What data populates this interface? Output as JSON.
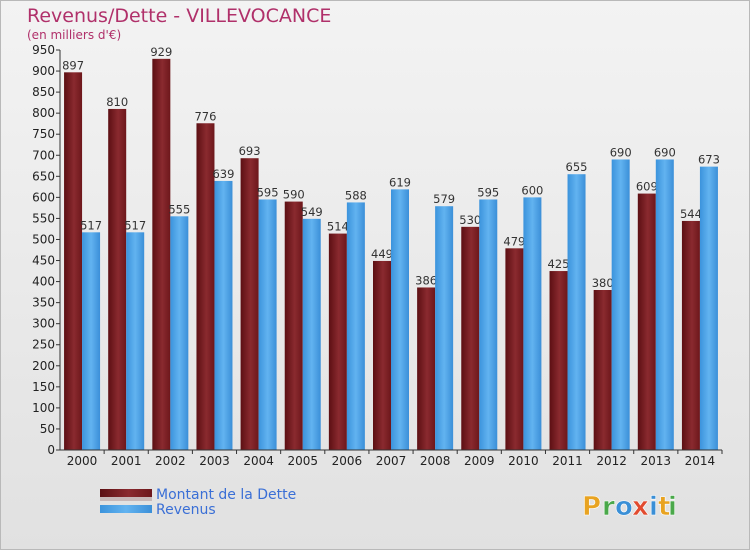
{
  "chart_data": {
    "type": "bar",
    "title": "Revenus/Dette - VILLEVOCANCE",
    "subtitle": "(en milliers d'€)",
    "categories": [
      "2000",
      "2001",
      "2002",
      "2003",
      "2004",
      "2005",
      "2006",
      "2007",
      "2008",
      "2009",
      "2010",
      "2011",
      "2012",
      "2013",
      "2014"
    ],
    "series": [
      {
        "name": "Montant de la Dette",
        "color": "#7a1b1f",
        "values": [
          897,
          810,
          929,
          776,
          693,
          590,
          514,
          449,
          386,
          530,
          479,
          425,
          380,
          609,
          544
        ]
      },
      {
        "name": "Revenus",
        "color": "#4a9fe3",
        "values": [
          517,
          517,
          555,
          639,
          595,
          549,
          588,
          619,
          579,
          595,
          600,
          655,
          690,
          690,
          673
        ]
      }
    ],
    "ylim": [
      0,
      950
    ],
    "ytick_step": 50,
    "grid": false,
    "legend_position": "bottom-left"
  },
  "branding": {
    "logo_letters": [
      "P",
      "r",
      "o",
      "x",
      "i",
      "t",
      "i"
    ],
    "logo_colors": [
      "#e8a321",
      "#4aa84a",
      "#3a8fd6",
      "#e14b2f",
      "#3a8fd6",
      "#e8a321",
      "#4aa84a"
    ]
  }
}
